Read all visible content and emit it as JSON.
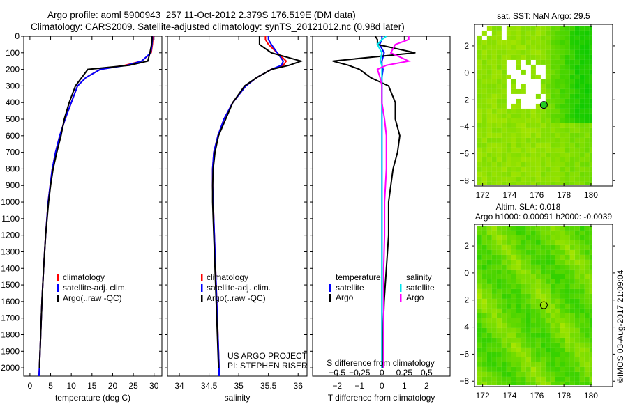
{
  "title_line1": "Argo profile: aoml 5900943_257 11-Oct-2012 2.379S 176.519E (DM data)",
  "title_line2": "Climatology: CARS2009. Satellite-adjusted climatology: synTS_20121012.nc (0.98d later)",
  "project_line1": "US ARGO PROJECT",
  "project_line2": "PI: STEPHEN RISER",
  "copyright": "©IMOS 03-Aug-2017 21:09:04",
  "colors": {
    "climatology": "#ff0000",
    "satellite": "#0000ff",
    "argo": "#000000",
    "sal_satellite": "#00e5ee",
    "sal_argo": "#ff00ff"
  },
  "chart_data": [
    {
      "type": "line",
      "id": "temperature",
      "xlabel": "temperature (deg C)",
      "xlim": [
        -1.5,
        31.9
      ],
      "xticks": [
        0,
        5,
        10,
        15,
        20,
        25,
        30
      ],
      "ylim": [
        0,
        2050
      ],
      "yticks": [
        0,
        100,
        200,
        300,
        400,
        500,
        600,
        700,
        800,
        900,
        1000,
        1100,
        1200,
        1300,
        1400,
        1500,
        1600,
        1700,
        1800,
        1900,
        2000
      ],
      "depth": [
        0,
        20,
        50,
        100,
        150,
        175,
        200,
        250,
        300,
        400,
        500,
        600,
        700,
        800,
        900,
        1000,
        1200,
        1400,
        1600,
        1800,
        2000,
        2050
      ],
      "legend": [
        "climatology",
        "satellite-adj. clim.",
        "Argo(..raw -QC)"
      ],
      "series": [
        {
          "name": "climatology",
          "color": "#ff0000",
          "values": [
            29.8,
            29.7,
            29.6,
            29.3,
            27,
            23,
            17,
            13.5,
            11.5,
            10,
            8.5,
            7.2,
            6.2,
            5.4,
            4.9,
            4.4,
            3.8,
            3.3,
            2.9,
            2.6,
            2.3,
            2.2
          ]
        },
        {
          "name": "satellite-adj. clim.",
          "color": "#0000ff",
          "values": [
            29.6,
            29.6,
            29.5,
            29.2,
            27,
            23.5,
            17,
            13.5,
            11.5,
            10,
            8.5,
            7.2,
            6.2,
            5.4,
            4.9,
            4.4,
            3.8,
            3.3,
            2.9,
            2.6,
            2.3,
            2.2
          ]
        },
        {
          "name": "Argo(..raw -QC)",
          "color": "#000000",
          "values": [
            29.5,
            29.5,
            29.4,
            29.0,
            28.5,
            24,
            14,
            12.5,
            11,
            9.5,
            8.3,
            7.5,
            6.5,
            5.6,
            5,
            4.5,
            3.8,
            3.3,
            2.9,
            2.6,
            2.3
          ]
        }
      ]
    },
    {
      "type": "line",
      "id": "salinity",
      "xlabel": "salinity",
      "xlim": [
        33.8,
        36.15
      ],
      "xticks": [
        34,
        34.5,
        35,
        35.5,
        36
      ],
      "ylim": [
        0,
        2050
      ],
      "depth": [
        0,
        20,
        50,
        100,
        150,
        175,
        200,
        250,
        300,
        400,
        500,
        600,
        700,
        800,
        900,
        1000,
        1200,
        1400,
        1600,
        1800,
        2000,
        2050
      ],
      "legend": [
        "climatology",
        "satellite-adj. clim.",
        "Argo(..raw -QC)"
      ],
      "series": [
        {
          "name": "climatology",
          "color": "#ff0000",
          "values": [
            35.45,
            35.45,
            35.5,
            35.65,
            35.8,
            35.75,
            35.55,
            35.3,
            35.12,
            34.9,
            34.75,
            34.65,
            34.58,
            34.56,
            34.56,
            34.57,
            34.59,
            34.61,
            34.63,
            34.65,
            34.67,
            34.67
          ]
        },
        {
          "name": "satellite-adj. clim.",
          "color": "#0000ff",
          "values": [
            35.5,
            35.5,
            35.55,
            35.65,
            35.75,
            35.72,
            35.55,
            35.3,
            35.12,
            34.9,
            34.75,
            34.65,
            34.58,
            34.56,
            34.56,
            34.57,
            34.59,
            34.61,
            34.63,
            34.65,
            34.67,
            34.67
          ]
        },
        {
          "name": "Argo(..raw -QC)",
          "color": "#000000",
          "values": [
            35.35,
            35.35,
            35.35,
            35.55,
            36.05,
            35.85,
            35.55,
            35.3,
            35.1,
            34.9,
            34.78,
            34.66,
            34.6,
            34.57,
            34.56,
            34.56,
            34.58,
            34.6,
            34.62,
            34.64,
            34.66
          ]
        }
      ]
    },
    {
      "type": "line",
      "id": "difference",
      "xlabel": "T difference from climatology",
      "xlim": [
        -3.1,
        3.05
      ],
      "xticks": [
        -2,
        -1,
        0,
        1,
        2
      ],
      "x2label": "S difference from climatology",
      "x2ticks": [
        -0.5,
        -0.25,
        0,
        0.25,
        0.5
      ],
      "s_to_t_scale": 4,
      "ylim": [
        0,
        2050
      ],
      "depth": [
        0,
        20,
        50,
        100,
        150,
        175,
        200,
        250,
        300,
        400,
        500,
        600,
        700,
        800,
        900,
        1000,
        1200,
        1400,
        1600,
        1800,
        2000
      ],
      "legend": {
        "temperature": "temperature",
        "salinity": "salinity",
        "satellite": "satellite",
        "argo": "Argo"
      },
      "series": [
        {
          "name": "T satellite",
          "units": "T",
          "color": "#0000ff",
          "values": [
            0,
            0,
            -0.1,
            0.1,
            0,
            0,
            0.05,
            0,
            0,
            0,
            0,
            0,
            0,
            0,
            0,
            0,
            0,
            0,
            0,
            0,
            0
          ]
        },
        {
          "name": "T Argo",
          "units": "T",
          "color": "#000000",
          "values": [
            -0.3,
            -0.2,
            -0.2,
            1.5,
            -2.2,
            -1.5,
            -1.0,
            -0.5,
            0.3,
            0.6,
            0.6,
            0.8,
            0.7,
            0.5,
            0.4,
            0.3,
            0.3,
            0.2,
            0.1,
            0.05,
            0.05
          ]
        },
        {
          "name": "S satellite",
          "units": "S",
          "color": "#00e5ee",
          "values": [
            0.05,
            0,
            -0.05,
            0,
            -0.02,
            0,
            0,
            0,
            0,
            0,
            0,
            0,
            0,
            0,
            0,
            0,
            0,
            0,
            0,
            0,
            0
          ]
        },
        {
          "name": "S Argo",
          "units": "S",
          "color": "#ff00ff",
          "values": [
            0.3,
            0.3,
            0.15,
            0.1,
            0.3,
            0.05,
            -0.05,
            -0.02,
            0,
            0,
            0.03,
            0.05,
            0.05,
            0.05,
            0.04,
            0.03,
            0.03,
            0.02,
            0.02,
            0.02,
            0.02
          ]
        }
      ]
    },
    {
      "type": "heatmap",
      "id": "sst_map",
      "title": "sat. SST: NaN Argo: 29.5",
      "xlim": [
        171.4,
        181.6
      ],
      "ylim": [
        -8.4,
        3.6
      ],
      "xticks": [
        172,
        174,
        176,
        178,
        180
      ],
      "yticks": [
        2,
        0,
        -2,
        -4,
        -6,
        -8
      ],
      "argo_position": [
        176.519,
        -2.379
      ]
    },
    {
      "type": "heatmap",
      "id": "sla_map",
      "title1": "Altim. SLA: 0.018",
      "title2": "Argo h1000: 0.00091 h2000: -0.0039",
      "xlim": [
        171.4,
        181.6
      ],
      "ylim": [
        -8.4,
        3.6
      ],
      "xticks": [
        172,
        174,
        176,
        178,
        180
      ],
      "yticks": [
        2,
        0,
        -2,
        -4,
        -6,
        -8
      ],
      "argo_position": [
        176.519,
        -2.379
      ]
    }
  ]
}
